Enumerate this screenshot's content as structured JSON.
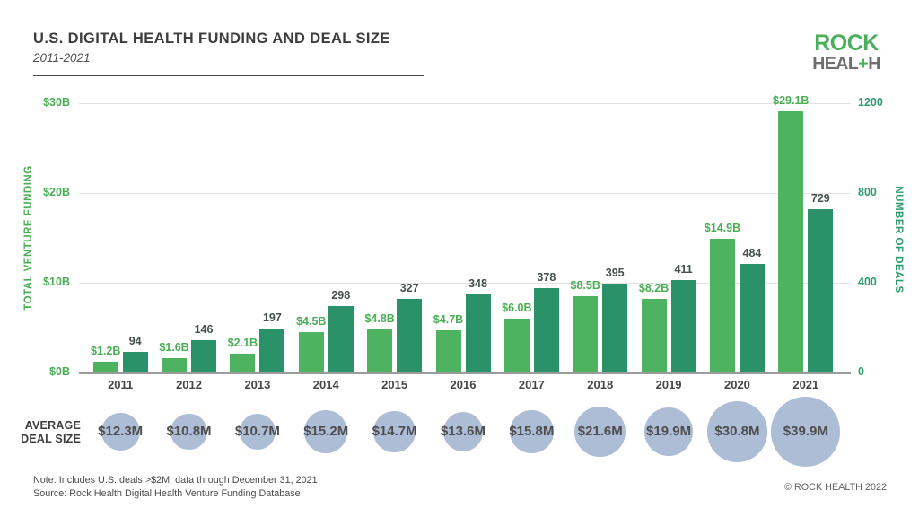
{
  "header": {
    "title": "U.S. DIGITAL HEALTH FUNDING AND DEAL SIZE",
    "subtitle": "2011-2021"
  },
  "logo": {
    "line1": "ROCK",
    "line2_pre": "HEAL",
    "line2_plus": "+",
    "line2_post": "H",
    "green": "#4caf5a",
    "gray": "#6e6e6e"
  },
  "colors": {
    "funding_bar": "#4db360",
    "deals_bar": "#2a9168",
    "funding_label": "#4aae55",
    "deals_label": "#44504a",
    "bubble": "#aebdd6",
    "gridline": "#e2e2e2",
    "axisline": "#9b9b9b"
  },
  "chart_data": {
    "type": "bar",
    "title": "U.S. DIGITAL HEALTH FUNDING AND DEAL SIZE",
    "subtitle": "2011-2021",
    "grid": true,
    "legend": "none",
    "categories": [
      "2011",
      "2012",
      "2013",
      "2014",
      "2015",
      "2016",
      "2017",
      "2018",
      "2019",
      "2020",
      "2021"
    ],
    "series": [
      {
        "name": "Total Venture Funding",
        "type": "bar",
        "axis": "left",
        "unit": "$B",
        "color": "#4db360",
        "values": [
          1.2,
          1.6,
          2.1,
          4.5,
          4.8,
          4.7,
          6.0,
          8.5,
          8.2,
          14.9,
          29.1
        ],
        "labels": [
          "$1.2B",
          "$1.6B",
          "$2.1B",
          "$4.5B",
          "$4.8B",
          "$4.7B",
          "$6.0B",
          "$8.5B",
          "$8.2B",
          "$14.9B",
          "$29.1B"
        ]
      },
      {
        "name": "Number of Deals",
        "type": "bar",
        "axis": "right",
        "unit": "deals",
        "color": "#2a9168",
        "values": [
          94,
          146,
          197,
          298,
          327,
          348,
          378,
          395,
          411,
          484,
          729
        ],
        "labels": [
          "94",
          "146",
          "197",
          "298",
          "327",
          "348",
          "378",
          "395",
          "411",
          "484",
          "729"
        ]
      },
      {
        "name": "Average Deal Size",
        "type": "bubble",
        "unit": "$M",
        "color": "#aebdd6",
        "values": [
          12.3,
          10.8,
          10.7,
          15.2,
          14.7,
          13.6,
          15.8,
          21.6,
          19.9,
          30.8,
          39.9
        ],
        "labels": [
          "$12.3M",
          "$10.8M",
          "$10.7M",
          "$15.2M",
          "$14.7M",
          "$13.6M",
          "$15.8M",
          "$21.6M",
          "$19.9M",
          "$30.8M",
          "$39.9M"
        ]
      }
    ],
    "left_axis": {
      "label": "TOTAL VENTURE FUNDING",
      "color": "#4aae55",
      "range": [
        0,
        30
      ],
      "ticks": [
        {
          "v": 0,
          "label": "$0B"
        },
        {
          "v": 10,
          "label": "$10B"
        },
        {
          "v": 20,
          "label": "$20B"
        },
        {
          "v": 30,
          "label": "$30B"
        }
      ]
    },
    "right_axis": {
      "label": "NUMBER OF DEALS",
      "color": "#2e9b6e",
      "range": [
        0,
        1200
      ],
      "ticks": [
        {
          "v": 0,
          "label": "0"
        },
        {
          "v": 400,
          "label": "400"
        },
        {
          "v": 800,
          "label": "800"
        },
        {
          "v": 1200,
          "label": "1200"
        }
      ]
    }
  },
  "avg_row": {
    "label_line1": "AVERAGE",
    "label_line2": "DEAL SIZE"
  },
  "footer": {
    "note": "Note: Includes U.S. deals >$2M; data through December 31, 2021",
    "source": "Source: Rock Health Digital Health Venture Funding Database",
    "copyright": "© ROCK HEALTH 2022"
  }
}
